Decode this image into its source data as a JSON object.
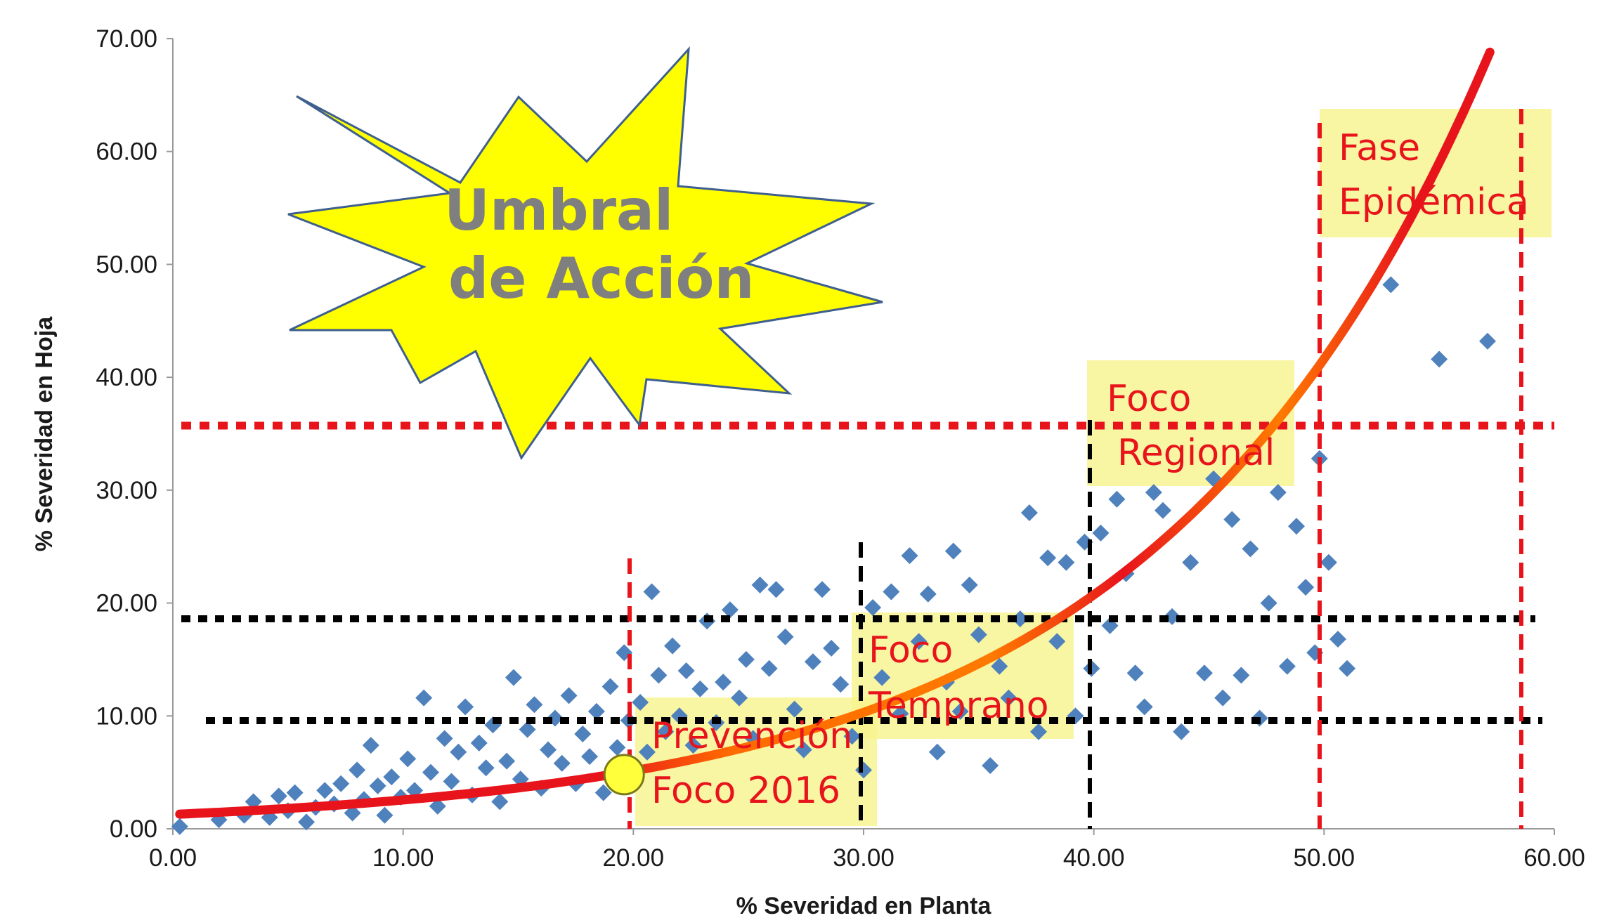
{
  "chart_data": {
    "type": "scatter",
    "xlabel": "% Severidad en Planta",
    "ylabel": "% Severidad en Hoja",
    "xlim": [
      0,
      60
    ],
    "ylim": [
      0,
      70
    ],
    "x_ticks": [
      "0.00",
      "10.00",
      "20.00",
      "30.00",
      "40.00",
      "50.00",
      "60.00"
    ],
    "y_ticks": [
      "0.00",
      "10.00",
      "20.00",
      "30.00",
      "40.00",
      "50.00",
      "60.00",
      "70.00"
    ],
    "grid": false,
    "colors": {
      "points": "#4f81bd",
      "curve": "#e8141c",
      "curve_end": "#ff7a00",
      "zone_fill": "#f7f48c",
      "red_lines": "#e8141c",
      "black_lines": "#000000",
      "burst": "#ffff00"
    },
    "series": [
      {
        "type": "scatter",
        "marker": "diamond",
        "points": [
          [
            0.3,
            0.2
          ],
          [
            2.0,
            0.8
          ],
          [
            3.1,
            1.2
          ],
          [
            3.5,
            2.4
          ],
          [
            4.2,
            1.0
          ],
          [
            4.6,
            2.9
          ],
          [
            5.0,
            1.6
          ],
          [
            5.3,
            3.2
          ],
          [
            5.8,
            0.6
          ],
          [
            6.2,
            1.9
          ],
          [
            6.6,
            3.4
          ],
          [
            7.0,
            2.2
          ],
          [
            7.3,
            4.0
          ],
          [
            7.8,
            1.4
          ],
          [
            8.0,
            5.2
          ],
          [
            8.3,
            2.6
          ],
          [
            8.6,
            7.4
          ],
          [
            8.9,
            3.8
          ],
          [
            9.2,
            1.2
          ],
          [
            9.5,
            4.6
          ],
          [
            9.9,
            2.8
          ],
          [
            10.2,
            6.2
          ],
          [
            10.5,
            3.4
          ],
          [
            10.9,
            11.6
          ],
          [
            11.2,
            5.0
          ],
          [
            11.5,
            2.0
          ],
          [
            11.8,
            8.0
          ],
          [
            12.1,
            4.2
          ],
          [
            12.4,
            6.8
          ],
          [
            12.7,
            10.8
          ],
          [
            13.0,
            3.0
          ],
          [
            13.3,
            7.6
          ],
          [
            13.6,
            5.4
          ],
          [
            13.9,
            9.2
          ],
          [
            14.2,
            2.4
          ],
          [
            14.5,
            6.0
          ],
          [
            14.8,
            13.4
          ],
          [
            15.1,
            4.4
          ],
          [
            15.4,
            8.8
          ],
          [
            15.7,
            11.0
          ],
          [
            16.0,
            3.6
          ],
          [
            16.3,
            7.0
          ],
          [
            16.6,
            9.8
          ],
          [
            16.9,
            5.8
          ],
          [
            17.2,
            11.8
          ],
          [
            17.5,
            4.0
          ],
          [
            17.8,
            8.4
          ],
          [
            18.1,
            6.4
          ],
          [
            18.4,
            10.4
          ],
          [
            18.7,
            3.2
          ],
          [
            19.0,
            12.6
          ],
          [
            19.3,
            7.2
          ],
          [
            19.6,
            15.6
          ],
          [
            19.8,
            9.6
          ],
          [
            20.3,
            11.2
          ],
          [
            20.6,
            6.8
          ],
          [
            20.8,
            21.0
          ],
          [
            21.1,
            13.6
          ],
          [
            21.4,
            8.6
          ],
          [
            21.7,
            16.2
          ],
          [
            22.0,
            10.0
          ],
          [
            22.3,
            14.0
          ],
          [
            22.6,
            7.4
          ],
          [
            22.9,
            12.4
          ],
          [
            23.2,
            18.4
          ],
          [
            23.6,
            9.4
          ],
          [
            23.9,
            13.0
          ],
          [
            24.2,
            19.4
          ],
          [
            24.6,
            11.6
          ],
          [
            24.9,
            15.0
          ],
          [
            25.2,
            8.0
          ],
          [
            25.5,
            21.6
          ],
          [
            25.9,
            14.2
          ],
          [
            26.2,
            21.2
          ],
          [
            26.6,
            17.0
          ],
          [
            27.0,
            10.6
          ],
          [
            27.4,
            7.0
          ],
          [
            27.8,
            14.8
          ],
          [
            28.2,
            21.2
          ],
          [
            28.6,
            16.0
          ],
          [
            29.0,
            12.8
          ],
          [
            29.5,
            8.2
          ],
          [
            30.0,
            5.2
          ],
          [
            30.4,
            19.6
          ],
          [
            30.8,
            13.4
          ],
          [
            31.2,
            21.0
          ],
          [
            31.6,
            10.2
          ],
          [
            32.0,
            24.2
          ],
          [
            32.4,
            16.6
          ],
          [
            32.8,
            20.8
          ],
          [
            33.2,
            6.8
          ],
          [
            33.6,
            13.0
          ],
          [
            33.9,
            24.6
          ],
          [
            34.2,
            10.4
          ],
          [
            34.6,
            21.6
          ],
          [
            35.0,
            17.2
          ],
          [
            35.5,
            5.6
          ],
          [
            35.9,
            14.4
          ],
          [
            36.3,
            11.6
          ],
          [
            36.8,
            18.6
          ],
          [
            37.2,
            28.0
          ],
          [
            37.6,
            8.6
          ],
          [
            38.0,
            24.0
          ],
          [
            38.4,
            16.6
          ],
          [
            38.8,
            23.6
          ],
          [
            39.2,
            10.0
          ],
          [
            39.6,
            25.4
          ],
          [
            39.9,
            14.2
          ],
          [
            40.3,
            26.2
          ],
          [
            40.7,
            18.0
          ],
          [
            41.0,
            29.2
          ],
          [
            41.4,
            22.6
          ],
          [
            41.8,
            13.8
          ],
          [
            42.2,
            10.8
          ],
          [
            42.6,
            29.8
          ],
          [
            43.0,
            28.2
          ],
          [
            43.4,
            18.8
          ],
          [
            43.8,
            8.6
          ],
          [
            44.2,
            23.6
          ],
          [
            44.8,
            13.8
          ],
          [
            45.2,
            31.0
          ],
          [
            45.6,
            11.6
          ],
          [
            46.0,
            27.4
          ],
          [
            46.4,
            13.6
          ],
          [
            46.8,
            24.8
          ],
          [
            47.2,
            9.8
          ],
          [
            47.6,
            20.0
          ],
          [
            48.0,
            29.8
          ],
          [
            48.4,
            14.4
          ],
          [
            48.8,
            26.8
          ],
          [
            49.2,
            21.4
          ],
          [
            49.6,
            15.6
          ],
          [
            49.8,
            32.8
          ],
          [
            50.2,
            23.6
          ],
          [
            50.6,
            16.8
          ],
          [
            51.0,
            14.2
          ],
          [
            52.9,
            48.2
          ],
          [
            55.0,
            41.6
          ],
          [
            57.1,
            43.2
          ]
        ]
      },
      {
        "type": "line",
        "x_range": [
          0.3,
          57.2
        ],
        "y_range": [
          1.3,
          68.8
        ]
      }
    ],
    "threshold_point": [
      19.6,
      4.8
    ]
  },
  "annotations": {
    "burst": {
      "line1": "Umbral",
      "line2": "de Acción"
    },
    "zone_prevencion": {
      "line1": "Prevención",
      "line2": "Foco 2016"
    },
    "zone_temprano": {
      "line1": "Foco",
      "line2": "Temprano"
    },
    "zone_regional": {
      "line1": "Foco",
      "line2": "Regional"
    },
    "zone_epidemica": {
      "line1": "Fase",
      "line2": "Epidémica"
    }
  }
}
